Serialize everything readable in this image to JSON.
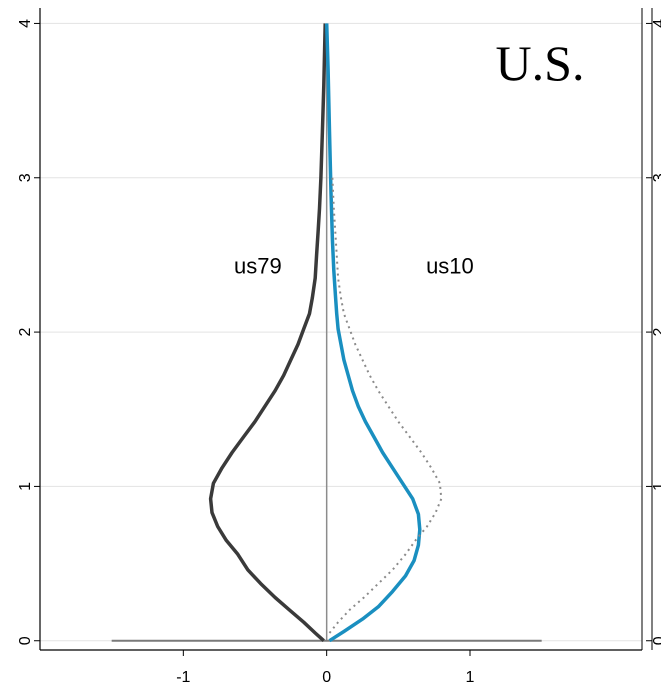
{
  "chart_data": {
    "type": "line",
    "title": "U.S.",
    "xlabel": "",
    "ylabel": "",
    "xlim": [
      -2.0,
      2.2
    ],
    "ylim": [
      -0.06,
      4.1
    ],
    "x_ticks": [
      -1,
      0,
      1
    ],
    "y_ticks": [
      0,
      1,
      2,
      3,
      4
    ],
    "grid": true,
    "annotations": [
      {
        "text": "us79"
      },
      {
        "text": "us10"
      }
    ],
    "series": [
      {
        "name": "us79",
        "color": "#3a3a3a",
        "points": [
          [
            -0.02,
            0.0
          ],
          [
            -0.08,
            0.05
          ],
          [
            -0.16,
            0.12
          ],
          [
            -0.26,
            0.2
          ],
          [
            -0.36,
            0.28
          ],
          [
            -0.46,
            0.37
          ],
          [
            -0.55,
            0.46
          ],
          [
            -0.62,
            0.56
          ],
          [
            -0.7,
            0.65
          ],
          [
            -0.76,
            0.74
          ],
          [
            -0.8,
            0.83
          ],
          [
            -0.81,
            0.92
          ],
          [
            -0.79,
            1.02
          ],
          [
            -0.73,
            1.12
          ],
          [
            -0.66,
            1.22
          ],
          [
            -0.58,
            1.32
          ],
          [
            -0.5,
            1.42
          ],
          [
            -0.43,
            1.52
          ],
          [
            -0.36,
            1.62
          ],
          [
            -0.3,
            1.72
          ],
          [
            -0.25,
            1.82
          ],
          [
            -0.2,
            1.92
          ],
          [
            -0.16,
            2.02
          ],
          [
            -0.12,
            2.12
          ],
          [
            -0.1,
            2.22
          ],
          [
            -0.08,
            2.35
          ],
          [
            -0.07,
            2.5
          ],
          [
            -0.06,
            2.65
          ],
          [
            -0.05,
            2.8
          ],
          [
            -0.04,
            3.0
          ],
          [
            -0.03,
            3.3
          ],
          [
            -0.02,
            3.6
          ],
          [
            -0.01,
            4.0
          ]
        ]
      },
      {
        "name": "us10",
        "color": "#1a8fc0",
        "points": [
          [
            0.02,
            0.0
          ],
          [
            0.12,
            0.06
          ],
          [
            0.25,
            0.14
          ],
          [
            0.36,
            0.22
          ],
          [
            0.46,
            0.32
          ],
          [
            0.55,
            0.42
          ],
          [
            0.61,
            0.52
          ],
          [
            0.64,
            0.62
          ],
          [
            0.65,
            0.72
          ],
          [
            0.64,
            0.82
          ],
          [
            0.6,
            0.92
          ],
          [
            0.53,
            1.02
          ],
          [
            0.46,
            1.12
          ],
          [
            0.39,
            1.22
          ],
          [
            0.33,
            1.32
          ],
          [
            0.27,
            1.42
          ],
          [
            0.22,
            1.52
          ],
          [
            0.18,
            1.62
          ],
          [
            0.15,
            1.72
          ],
          [
            0.12,
            1.82
          ],
          [
            0.1,
            1.92
          ],
          [
            0.08,
            2.02
          ],
          [
            0.07,
            2.12
          ],
          [
            0.06,
            2.25
          ],
          [
            0.05,
            2.4
          ],
          [
            0.04,
            2.6
          ],
          [
            0.03,
            2.9
          ],
          [
            0.02,
            3.3
          ],
          [
            0.01,
            3.7
          ],
          [
            0.0,
            4.0
          ]
        ]
      },
      {
        "name": "us79 mirrored",
        "color": "#8a8a8a",
        "points": [
          [
            0.02,
            0.05
          ],
          [
            0.08,
            0.12
          ],
          [
            0.16,
            0.2
          ],
          [
            0.26,
            0.28
          ],
          [
            0.36,
            0.37
          ],
          [
            0.46,
            0.46
          ],
          [
            0.55,
            0.56
          ],
          [
            0.62,
            0.65
          ],
          [
            0.7,
            0.74
          ],
          [
            0.76,
            0.83
          ],
          [
            0.8,
            0.92
          ],
          [
            0.79,
            1.02
          ],
          [
            0.73,
            1.12
          ],
          [
            0.66,
            1.22
          ],
          [
            0.58,
            1.32
          ],
          [
            0.5,
            1.42
          ],
          [
            0.43,
            1.52
          ],
          [
            0.36,
            1.62
          ],
          [
            0.3,
            1.72
          ],
          [
            0.25,
            1.82
          ],
          [
            0.2,
            1.92
          ],
          [
            0.16,
            2.02
          ],
          [
            0.12,
            2.12
          ],
          [
            0.1,
            2.22
          ],
          [
            0.08,
            2.35
          ],
          [
            0.07,
            2.5
          ],
          [
            0.06,
            2.65
          ],
          [
            0.05,
            2.8
          ],
          [
            0.04,
            3.0
          ]
        ]
      }
    ],
    "baseline": {
      "y": 0,
      "x_from": -1.5,
      "x_to": 1.5
    },
    "zero_line": {
      "x": 0,
      "y_from": 0,
      "y_to": 4
    }
  }
}
